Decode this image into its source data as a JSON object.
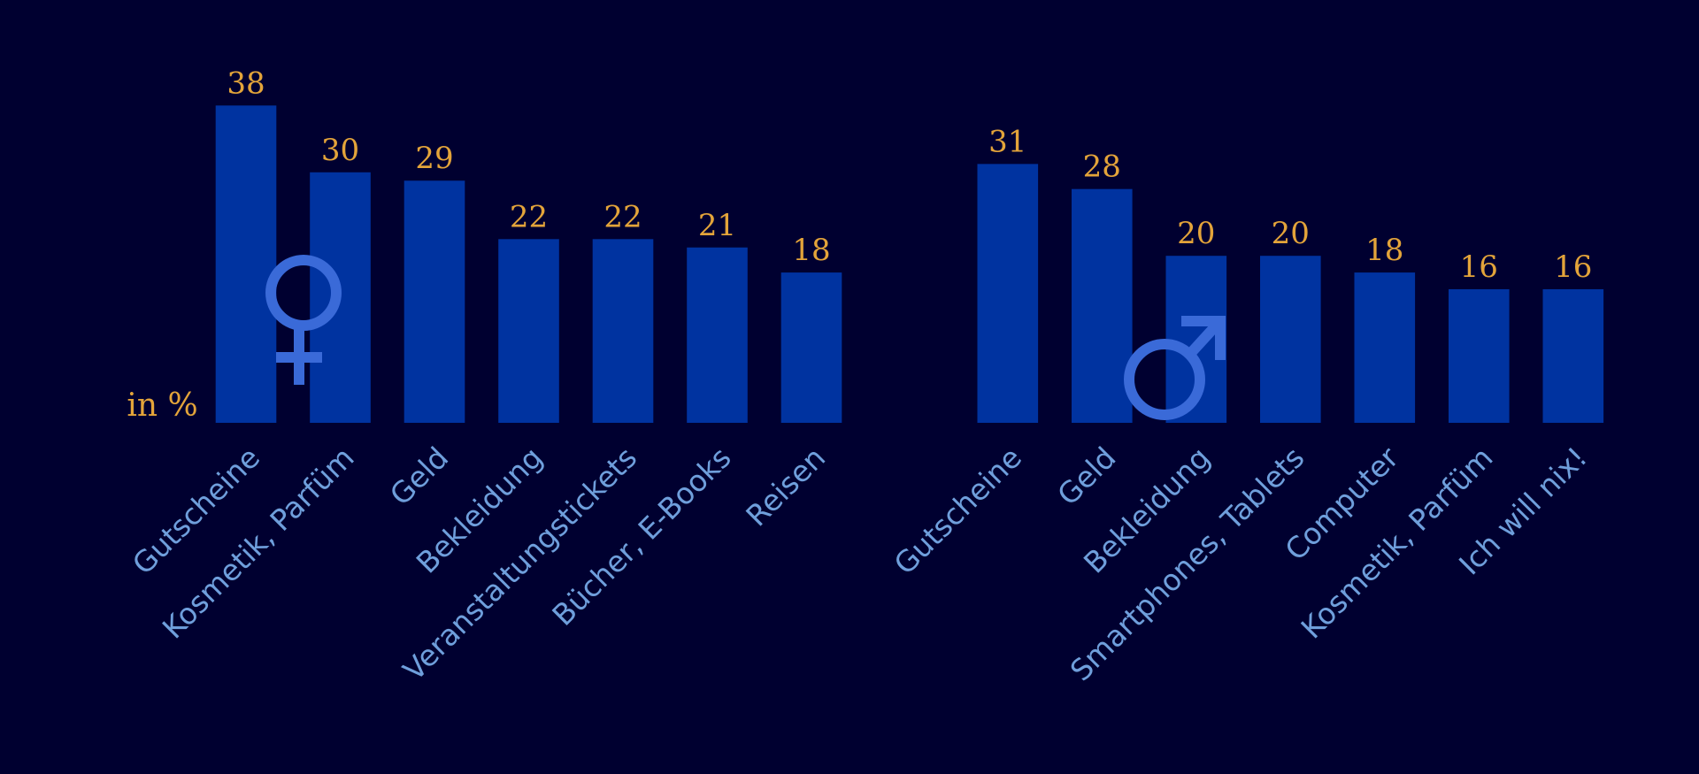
{
  "chart_data": [
    {
      "type": "bar",
      "y_label": "in %",
      "color": "#0033a0",
      "categories": [
        "Gutscheine",
        "Kosmetik, Parfüm",
        "Geld",
        "Bekleidung",
        "Veranstaltungstickets",
        "Bücher, E-Books",
        "Reisen"
      ],
      "values": [
        38,
        30,
        29,
        22,
        22,
        21,
        18
      ]
    },
    {
      "type": "bar",
      "color": "#0033a0",
      "categories": [
        "Gutscheine",
        "Geld",
        "Bekleidung",
        "Smartphones, Tablets",
        "Computer",
        "Kosmetik, Parfüm",
        "Ich will nix!"
      ],
      "values": [
        31,
        28,
        20,
        20,
        18,
        16,
        16
      ]
    }
  ]
}
